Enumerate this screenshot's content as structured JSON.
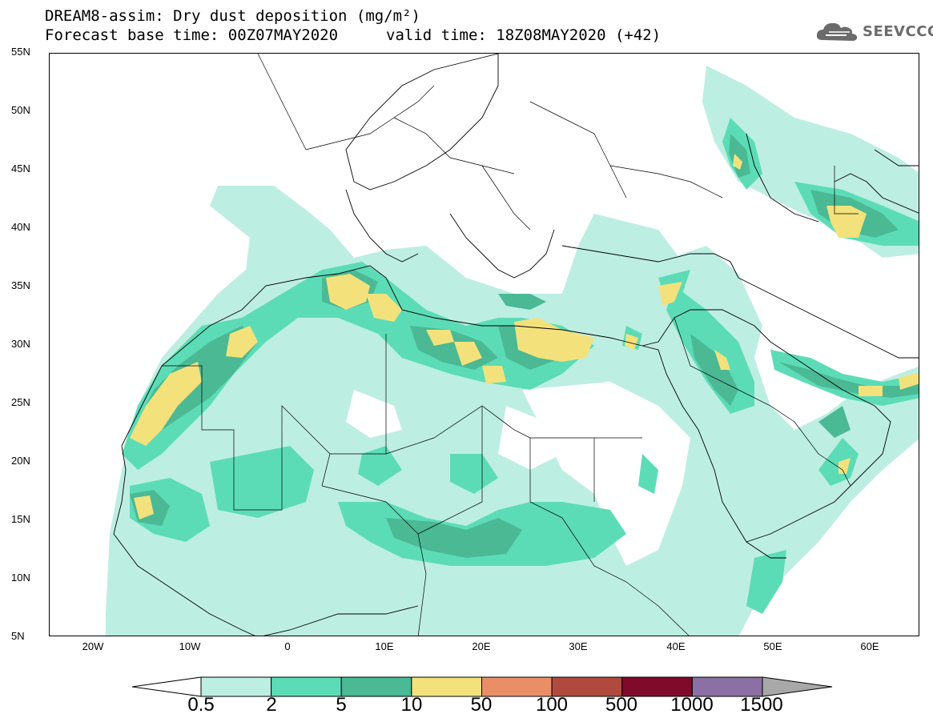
{
  "title": {
    "line1": "DREAM8-assim: Dry dust deposition (mg/m²)",
    "line2": "Forecast base time: 00Z07MAY2020",
    "valid": "valid time: 18Z08MAY2020 (+42)"
  },
  "logo": {
    "text": "SEEVCCC",
    "icon": "cloud-icon"
  },
  "map": {
    "projection": "lat-lon",
    "lon_range": [
      -25,
      65
    ],
    "lat_range": [
      5,
      55
    ],
    "lat_labels": [
      "55N",
      "50N",
      "45N",
      "40N",
      "35N",
      "30N",
      "25N",
      "20N",
      "15N",
      "10N",
      "5N"
    ],
    "lon_labels": [
      "20W",
      "10W",
      "0",
      "10E",
      "20E",
      "30E",
      "40E",
      "50E",
      "60E"
    ],
    "colors": {
      "lvl_0_5": "#bdeee2",
      "lvl_2": "#5cdcb6",
      "lvl_5": "#4ab994",
      "lvl_10": "#f3e27c",
      "lvl_50": "#ea8e67",
      "lvl_100": "#b04a3f",
      "lvl_500": "#7f0a2a",
      "lvl_1000": "#8b70a4",
      "lvl_1500": "#a8a8a8"
    }
  },
  "colorbar": {
    "labels": [
      "0.5",
      "2",
      "5",
      "10",
      "50",
      "100",
      "500",
      "1000",
      "1500"
    ],
    "colors": [
      "#bdeee2",
      "#5cdcb6",
      "#4ab994",
      "#f3e27c",
      "#ea8e67",
      "#b04a3f",
      "#7f0a2a",
      "#8b70a4"
    ],
    "under_color": "#ffffff",
    "over_color": "#a8a8a8"
  }
}
